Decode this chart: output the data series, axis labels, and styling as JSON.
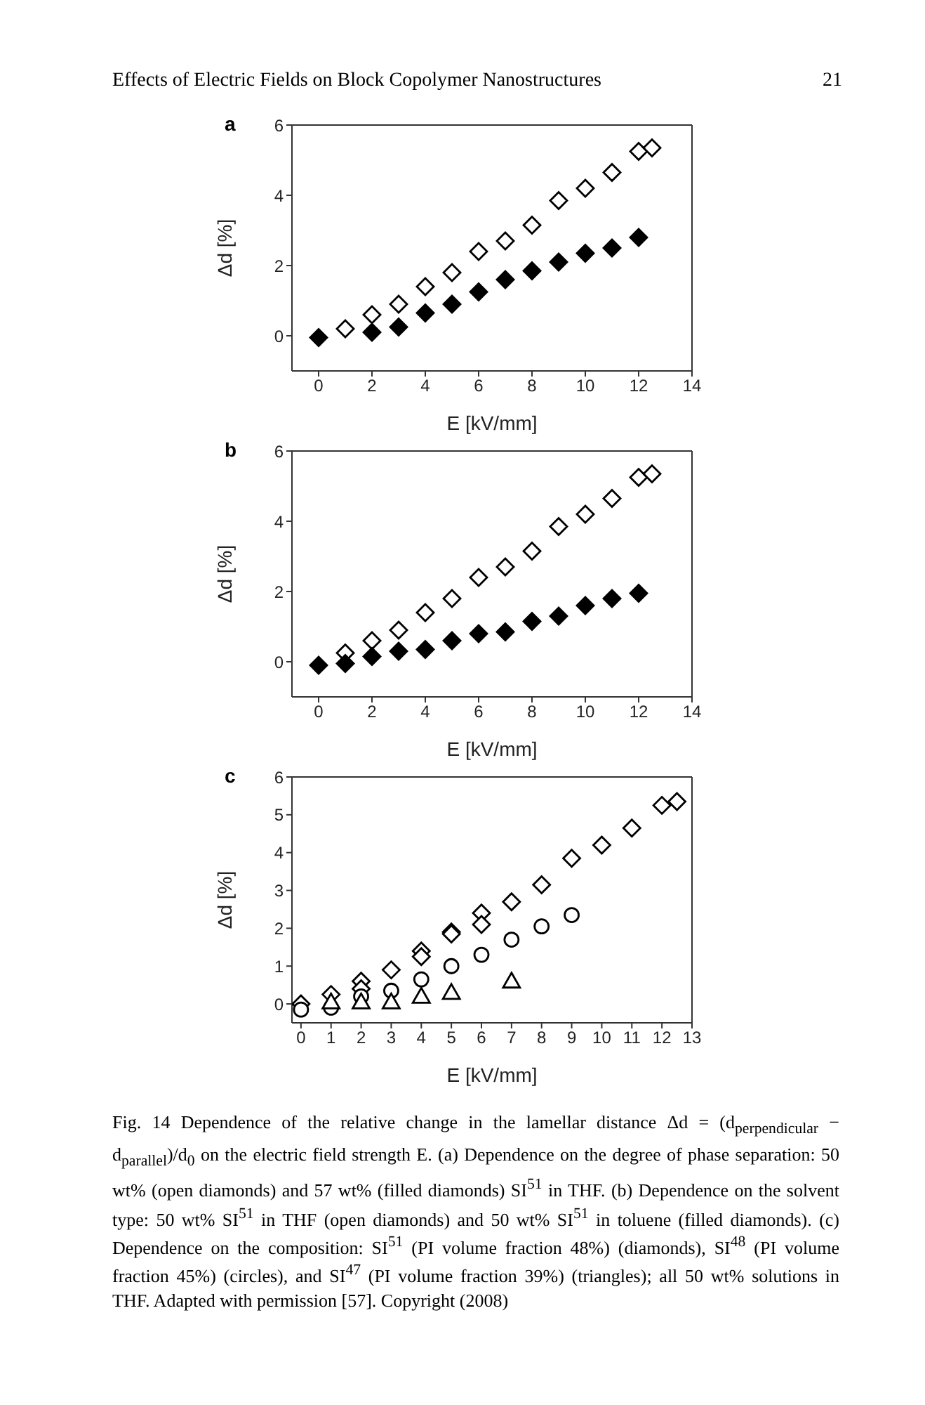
{
  "chart_data": [
    {
      "type": "scatter",
      "title": "a",
      "xlabel": "E [kV/mm]",
      "ylabel": "Δd [%]",
      "xlim": [
        -1,
        14
      ],
      "xticks": [
        0,
        2,
        4,
        6,
        8,
        10,
        12,
        14
      ],
      "ylim": [
        -1,
        6
      ],
      "yticks": [
        0,
        2,
        4,
        6
      ],
      "legend": false,
      "annotations": [
        "Effects of Electric Fields on Block Copolymer Nanostructures",
        "21"
      ],
      "series": [
        {
          "color": "#ffffff",
          "marker": "diamond",
          "x": [
            1,
            2,
            3,
            4,
            5,
            6,
            7,
            8,
            9,
            10,
            11,
            12,
            12.5
          ],
          "values": [
            0.2,
            0.6,
            0.9,
            1.4,
            1.8,
            2.4,
            2.7,
            3.15,
            3.85,
            4.2,
            4.65,
            5.25,
            5.35
          ]
        },
        {
          "color": "#000000",
          "marker": "diamond",
          "x": [
            0,
            2,
            3,
            4,
            5,
            6,
            7,
            8,
            9,
            10,
            11,
            12
          ],
          "values": [
            -0.05,
            0.1,
            0.25,
            0.65,
            0.9,
            1.25,
            1.6,
            1.85,
            2.1,
            2.35,
            2.5,
            2.8
          ]
        }
      ]
    },
    {
      "type": "scatter",
      "title": "b",
      "xlabel": "E [kV/mm]",
      "ylabel": "Δd [%]",
      "xlim": [
        -1,
        14
      ],
      "xticks": [
        0,
        2,
        4,
        6,
        8,
        10,
        12,
        14
      ],
      "ylim": [
        -1,
        6
      ],
      "yticks": [
        0,
        2,
        4,
        6
      ],
      "legend": false,
      "series": [
        {
          "color": "#ffffff",
          "marker": "diamond",
          "x": [
            1,
            2,
            3,
            4,
            5,
            6,
            7,
            8,
            9,
            10,
            11,
            12,
            12.5
          ],
          "values": [
            0.25,
            0.6,
            0.9,
            1.4,
            1.8,
            2.4,
            2.7,
            3.15,
            3.85,
            4.2,
            4.65,
            5.25,
            5.35
          ]
        },
        {
          "color": "#000000",
          "marker": "diamond",
          "x": [
            0,
            1,
            2,
            3,
            4,
            5,
            6,
            7,
            8,
            9,
            10,
            11,
            12
          ],
          "values": [
            -0.1,
            -0.05,
            0.15,
            0.3,
            0.35,
            0.6,
            0.8,
            0.85,
            1.15,
            1.3,
            1.6,
            1.8,
            1.95
          ]
        }
      ]
    },
    {
      "type": "scatter",
      "title": "c",
      "xlabel": "E [kV/mm]",
      "ylabel": "Δd [%]",
      "xlim": [
        -0.3,
        13
      ],
      "xticks": [
        0,
        1,
        2,
        3,
        4,
        5,
        6,
        7,
        8,
        9,
        10,
        11,
        12,
        13
      ],
      "ylim": [
        -0.5,
        6
      ],
      "yticks": [
        0,
        1,
        2,
        3,
        4,
        5,
        6
      ],
      "legend": false,
      "annotations": [
        "Fig. 14 Dependence of the relative change in the lamellar distance Δd = (d$_{perpendicular}$ − d$_{parallel}$)/d$_{0}$ on the electric field strength E. (a) Dependence on the degree of phase separation: 50 wt% (open diamonds) and 57 wt% (filled diamonds) SI$^{51}$ in THF. (b) Dependence on the solvent type: 50 wt% SI$^{51}$ in THF (open diamonds) and 50 wt% SI$^{51}$ in toluene (filled diamonds). (c) Dependence on the composition: SI$^{51}$ (PI volume fraction 48%) (diamonds), SI$^{48}$ (PI volume fraction 45%) (circles), and SI$^{47}$ (PI volume fraction 39%) (triangles); all 50 wt% solutions in THF. Adapted with permission [57]. Copyright (2008)"
      ],
      "series": [
        {
          "color": "#ffffff",
          "marker": "diamond",
          "x": [
            0,
            1,
            2,
            2,
            3,
            4,
            4,
            5,
            5,
            6,
            6,
            7,
            8,
            9,
            10,
            11,
            12,
            12.5
          ],
          "values": [
            0,
            0.25,
            0.6,
            0.4,
            0.9,
            1.4,
            1.25,
            1.9,
            1.85,
            2.4,
            2.1,
            2.7,
            3.15,
            3.85,
            4.2,
            4.65,
            5.25,
            5.35
          ]
        },
        {
          "color": "#ffffff",
          "marker": "circle",
          "x": [
            0,
            1,
            2,
            3,
            4,
            5,
            6,
            7,
            8,
            9
          ],
          "values": [
            -0.15,
            -0.1,
            0.2,
            0.35,
            0.65,
            1.0,
            1.3,
            1.7,
            2.05,
            2.35
          ]
        },
        {
          "color": "#ffffff",
          "marker": "triangle",
          "x": [
            1,
            2,
            3,
            4,
            5,
            7
          ],
          "values": [
            0.05,
            0.05,
            0.05,
            0.2,
            0.3,
            0.6
          ]
        }
      ]
    }
  ]
}
